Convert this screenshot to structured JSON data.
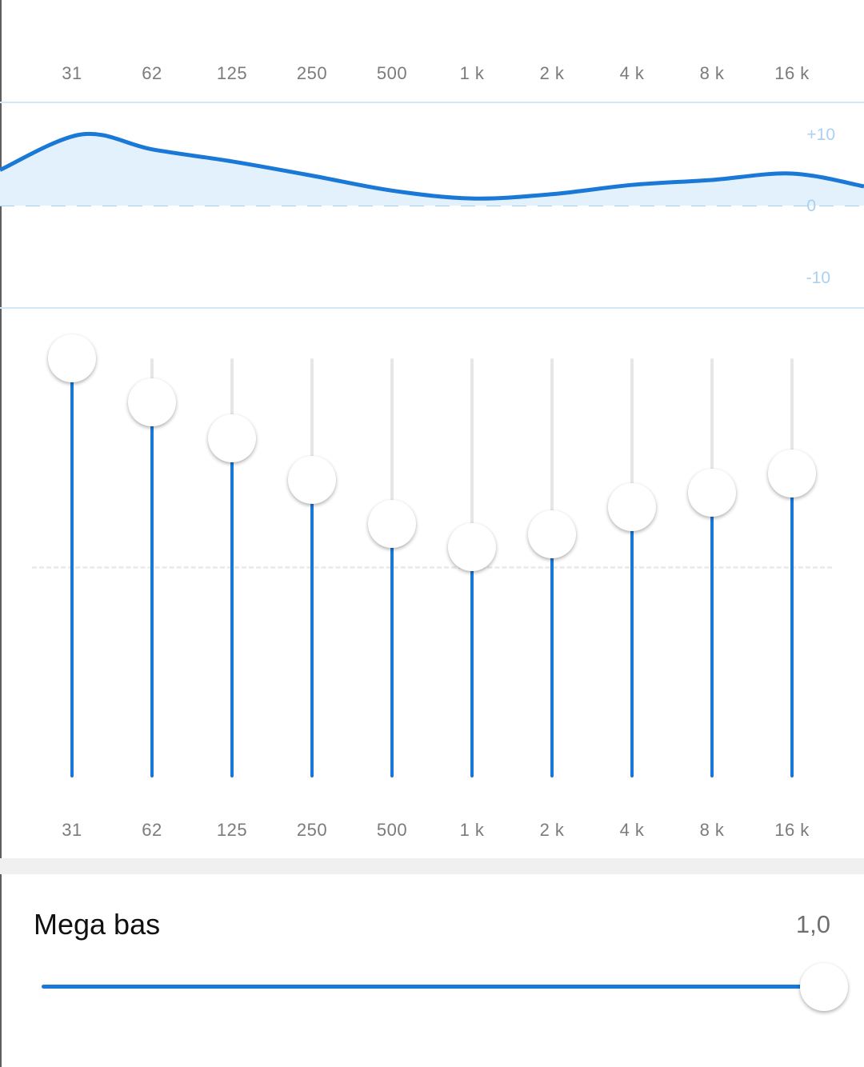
{
  "bands": [
    {
      "label": "31",
      "gain": 10
    },
    {
      "label": "62",
      "gain": 7.9
    },
    {
      "label": "125",
      "gain": 6.2
    },
    {
      "label": "250",
      "gain": 4.2
    },
    {
      "label": "500",
      "gain": 2.1
    },
    {
      "label": "1 k",
      "gain": 1.0
    },
    {
      "label": "2 k",
      "gain": 1.6
    },
    {
      "label": "4 k",
      "gain": 2.9
    },
    {
      "label": "8 k",
      "gain": 3.6
    },
    {
      "label": "16 k",
      "gain": 4.5
    }
  ],
  "gain_range": [
    -10,
    10
  ],
  "curve_scale": {
    "top_label": "+10",
    "zero_label": "0",
    "bottom_label": "-10"
  },
  "mega_bass": {
    "label": "Mega bas",
    "value_text": "1,0",
    "value": 1.0,
    "min": 0,
    "max": 1
  },
  "colors": {
    "accent": "#1a78d6",
    "curve_fill": "#e3f1fc",
    "track": "#e6e6e6",
    "scale_text": "#a9d0f0"
  }
}
